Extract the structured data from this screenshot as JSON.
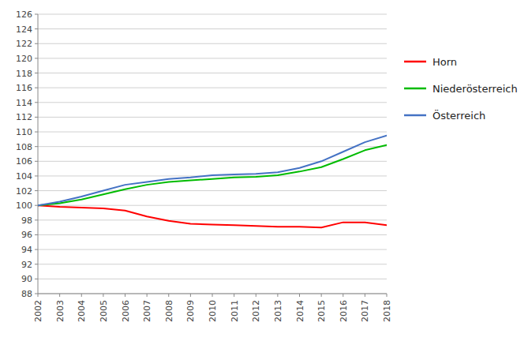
{
  "chart_data": {
    "type": "line",
    "x": [
      2002,
      2003,
      2004,
      2005,
      2006,
      2007,
      2008,
      2009,
      2010,
      2011,
      2012,
      2013,
      2014,
      2015,
      2016,
      2017,
      2018
    ],
    "xlim": [
      2002,
      2018
    ],
    "xticks": [
      2002,
      2003,
      2004,
      2005,
      2006,
      2007,
      2008,
      2009,
      2010,
      2011,
      2012,
      2013,
      2014,
      2015,
      2016,
      2017,
      2018
    ],
    "ylim": [
      88,
      126
    ],
    "yticks": [
      88,
      90,
      92,
      94,
      96,
      98,
      100,
      102,
      104,
      106,
      108,
      110,
      112,
      114,
      116,
      118,
      120,
      122,
      124,
      126
    ],
    "grid": "y",
    "legend": "right",
    "series": [
      {
        "name": "Horn",
        "color": "#ff0000",
        "values": [
          100.0,
          99.8,
          99.7,
          99.6,
          99.3,
          98.5,
          97.9,
          97.5,
          97.4,
          97.3,
          97.2,
          97.1,
          97.1,
          97.0,
          97.7,
          97.7,
          97.3
        ]
      },
      {
        "name": "Niederösterreich",
        "color": "#00bb00",
        "values": [
          100.0,
          100.3,
          100.8,
          101.5,
          102.2,
          102.8,
          103.2,
          103.4,
          103.6,
          103.8,
          103.9,
          104.1,
          104.6,
          105.2,
          106.3,
          107.5,
          108.2
        ]
      },
      {
        "name": "Österreich",
        "color": "#4472c4",
        "values": [
          100.0,
          100.5,
          101.2,
          102.0,
          102.8,
          103.2,
          103.6,
          103.8,
          104.1,
          104.2,
          104.3,
          104.5,
          105.1,
          106.0,
          107.3,
          108.6,
          109.5
        ]
      }
    ]
  }
}
